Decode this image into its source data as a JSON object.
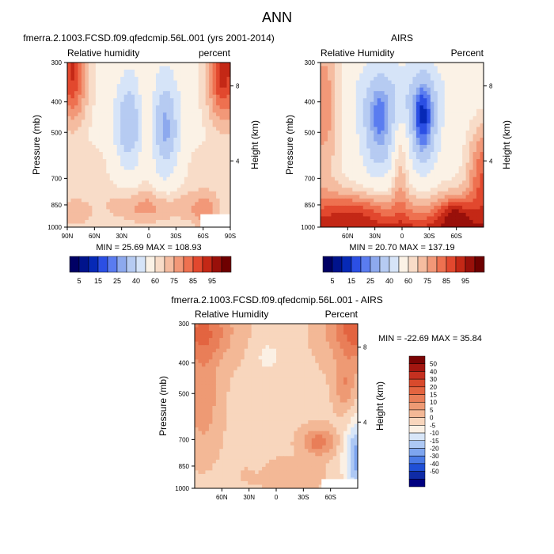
{
  "figure_title": "ANN",
  "colors": {
    "full_scale": [
      "#000064",
      "#00138c",
      "#0629b6",
      "#2b4fe4",
      "#5a7cf0",
      "#8da9ee",
      "#b6cbf2",
      "#d6e4f8",
      "#fbf2e6",
      "#f8dcc8",
      "#f5bca0",
      "#f29878",
      "#ee7150",
      "#e2482e",
      "#c42816",
      "#99100a",
      "#6e0000"
    ],
    "diff_scale": [
      "#000080",
      "#0f2ba6",
      "#2050d6",
      "#4a7ae6",
      "#7ea5ef",
      "#adc8f4",
      "#d8e6f8",
      "#fbf0e4",
      "#f8d6bd",
      "#f3b896",
      "#ee9a74",
      "#e97e58",
      "#e36440",
      "#d84a2c",
      "#c53020",
      "#a31610",
      "#7a0404"
    ]
  },
  "chart_data": [
    {
      "id": "model",
      "type": "contour",
      "title": "fmerra.2.1003.FCSD.f09.qfedcmip.56L.001 (yrs 2001-2014)",
      "left_label": "Relative humidity",
      "right_label": "percent",
      "ylabel": "Pressure (mb)",
      "ylabel_right": "Height (km)",
      "x_ticks": [
        "90N",
        "60N",
        "30N",
        "0",
        "30S",
        "60S",
        "90S"
      ],
      "x_tick_lat": [
        90,
        60,
        30,
        0,
        -30,
        -60,
        -90
      ],
      "y_ticks": [
        300,
        400,
        500,
        700,
        850,
        1000
      ],
      "y_right_ticks": [
        "8",
        "4"
      ],
      "y_right_tick_pressure": [
        356,
        616
      ],
      "ylim": [
        300,
        1000
      ],
      "xlim": [
        90,
        -90
      ],
      "stats": "MIN = 25.69   MAX = 108.93",
      "min": 25.69,
      "max": 108.93,
      "missing_region": {
        "lat": [
          -57,
          -90
        ],
        "pressure": [
          910,
          1000
        ]
      }
    },
    {
      "id": "obs",
      "type": "contour",
      "title": "AIRS",
      "left_label": "Relative Humidity",
      "right_label": "Percent",
      "ylabel": "Pressure (mb)",
      "ylabel_right": "Height (km)",
      "x_ticks": [
        "60N",
        "30N",
        "0",
        "30S",
        "60S"
      ],
      "x_tick_lat": [
        60,
        30,
        0,
        -30,
        -60
      ],
      "y_ticks": [
        300,
        400,
        500,
        700,
        850,
        1000
      ],
      "y_right_ticks": [
        "8",
        "4"
      ],
      "y_right_tick_pressure": [
        356,
        616
      ],
      "ylim": [
        300,
        1000
      ],
      "xlim": [
        90,
        -90
      ],
      "stats": "MIN = 20.70   MAX = 137.19",
      "min": 20.7,
      "max": 137.19
    },
    {
      "id": "diff",
      "type": "contour",
      "title": "fmerra.2.1003.FCSD.f09.qfedcmip.56L.001 - AIRS",
      "left_label": "Relative Humidity",
      "right_label": "Percent",
      "ylabel": "Pressure (mb)",
      "ylabel_right": "Height (km)",
      "x_ticks": [
        "60N",
        "30N",
        "0",
        "30S",
        "60S"
      ],
      "x_tick_lat": [
        60,
        30,
        0,
        -30,
        -60
      ],
      "y_ticks": [
        300,
        400,
        500,
        700,
        850,
        1000
      ],
      "y_right_ticks": [
        "8",
        "4"
      ],
      "y_right_tick_pressure": [
        356,
        616
      ],
      "ylim": [
        300,
        1000
      ],
      "xlim": [
        90,
        -90
      ],
      "stats": "MIN = -22.69   MAX =  35.84",
      "min": -22.69,
      "max": 35.84,
      "missing_region": {
        "lat": [
          -50,
          -90
        ],
        "pressure": [
          935,
          1000
        ]
      }
    }
  ],
  "colorbars": {
    "full": {
      "levels": [
        5,
        10,
        15,
        20,
        25,
        30,
        40,
        50,
        60,
        65,
        70,
        75,
        80,
        85,
        90,
        95
      ],
      "labels": [
        "5",
        "15",
        "25",
        "40",
        "60",
        "75",
        "85",
        "95"
      ]
    },
    "diff": {
      "levels": [
        -50,
        -40,
        -30,
        -20,
        -15,
        -10,
        -5,
        0,
        5,
        10,
        15,
        20,
        30,
        40,
        50
      ],
      "labels": [
        "50",
        "40",
        "30",
        "20",
        "15",
        "10",
        "5",
        "0",
        "-5",
        "-10",
        "-15",
        "-20",
        "-30",
        "-40",
        "-50"
      ]
    }
  }
}
